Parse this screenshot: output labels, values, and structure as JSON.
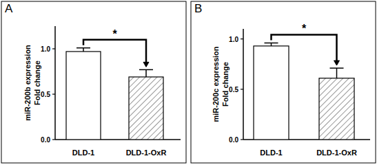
{
  "chart_data": [
    {
      "type": "bar",
      "title": "A",
      "ylabel": [
        "miR-200b expression",
        "Fold change"
      ],
      "categories": [
        "DLD-1",
        "DLD-1-OxR"
      ],
      "values": [
        0.97,
        0.69
      ],
      "errors": [
        0.04,
        0.08
      ],
      "colors": [
        "#ffffff",
        "#999999"
      ],
      "ylim": [
        0,
        1.25
      ],
      "yticks": [
        {
          "value": 0,
          "label": "0.0"
        },
        {
          "value": 0.5,
          "label": "0.5"
        },
        {
          "value": 1,
          "label": "1.0"
        }
      ],
      "annotation": "*",
      "grid": false
    },
    {
      "type": "bar",
      "title": "B",
      "ylabel": [
        "miR-200c expression",
        "Fold change"
      ],
      "categories": [
        "DLD-1",
        "DLD-1-OxR"
      ],
      "values": [
        0.93,
        0.61
      ],
      "errors": [
        0.03,
        0.1
      ],
      "colors": [
        "#ffffff",
        "#999999"
      ],
      "ylim": [
        0,
        1.1
      ],
      "yticks": [
        {
          "value": 0,
          "label": "0.0"
        },
        {
          "value": 0.5,
          "label": "0.5"
        },
        {
          "value": 1,
          "label": "1.0"
        }
      ],
      "annotation": "*",
      "grid": false
    }
  ]
}
